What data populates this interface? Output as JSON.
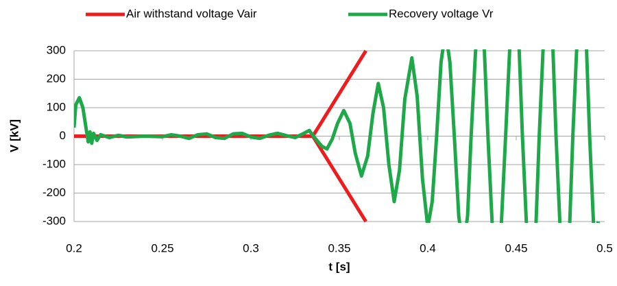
{
  "chart_data": {
    "type": "line",
    "xlabel": "t [s]",
    "ylabel": "V [kV]",
    "xlim": [
      0.2,
      0.5
    ],
    "ylim": [
      -300,
      300
    ],
    "xticks": [
      0.2,
      0.25,
      0.3,
      0.35,
      0.4,
      0.45,
      0.5
    ],
    "yticks": [
      -300,
      -200,
      -100,
      0,
      100,
      200,
      300
    ],
    "grid": true,
    "legend": "top",
    "series": [
      {
        "name": "Air withstand voltage Vair",
        "color": "#ee1c1c",
        "x": [
          0.2,
          0.335,
          0.365,
          null,
          0.2,
          0.335,
          0.365
        ],
        "values": [
          0,
          0,
          300,
          null,
          0,
          0,
          -300
        ]
      },
      {
        "name": "Recovery voltage Vr",
        "color": "#1ea84a",
        "x": [
          0.2,
          0.201,
          0.203,
          0.205,
          0.207,
          0.208,
          0.209,
          0.21,
          0.211,
          0.213,
          0.215,
          0.22,
          0.225,
          0.23,
          0.24,
          0.25,
          0.255,
          0.26,
          0.265,
          0.27,
          0.275,
          0.28,
          0.285,
          0.29,
          0.295,
          0.3,
          0.305,
          0.31,
          0.315,
          0.32,
          0.325,
          0.33,
          0.333,
          0.336,
          0.34,
          0.343,
          0.346,
          0.349,
          0.3525,
          0.356,
          0.359,
          0.3625,
          0.366,
          0.369,
          0.372,
          0.375,
          0.378,
          0.381,
          0.384,
          0.387,
          0.391,
          0.394,
          0.397,
          0.4,
          0.4025,
          0.405,
          0.4075,
          0.41,
          0.4125,
          0.415,
          0.4175,
          0.42,
          0.4225,
          0.4245,
          0.427,
          0.4295,
          0.432,
          0.434,
          0.4365,
          0.439,
          0.4415,
          0.444,
          0.4465,
          0.449,
          0.4515,
          0.4535,
          0.456,
          0.4585,
          0.461,
          0.463,
          0.4655,
          0.468,
          0.4705,
          0.4725,
          0.475,
          0.4775,
          0.48,
          0.482,
          0.4845,
          0.487,
          0.4895,
          0.4915,
          0.494,
          0.4965
        ],
        "values": [
          30,
          110,
          135,
          100,
          20,
          -20,
          15,
          -25,
          10,
          -15,
          5,
          -5,
          3,
          -3,
          0,
          -2,
          5,
          0,
          -8,
          5,
          8,
          -5,
          -8,
          8,
          10,
          -3,
          -8,
          3,
          10,
          2,
          -5,
          10,
          20,
          -5,
          -35,
          -45,
          -10,
          45,
          90,
          45,
          -60,
          -140,
          -70,
          80,
          185,
          100,
          -100,
          -230,
          -120,
          130,
          275,
          140,
          -150,
          -320,
          -230,
          0,
          260,
          370,
          260,
          0,
          -280,
          -400,
          -280,
          0,
          300,
          430,
          300,
          0,
          -320,
          -450,
          -320,
          0,
          330,
          470,
          330,
          0,
          -340,
          -480,
          -340,
          0,
          350,
          490,
          350,
          0,
          -350,
          -500,
          -350,
          0,
          350,
          500,
          350,
          0,
          -350,
          -300
        ]
      }
    ]
  }
}
